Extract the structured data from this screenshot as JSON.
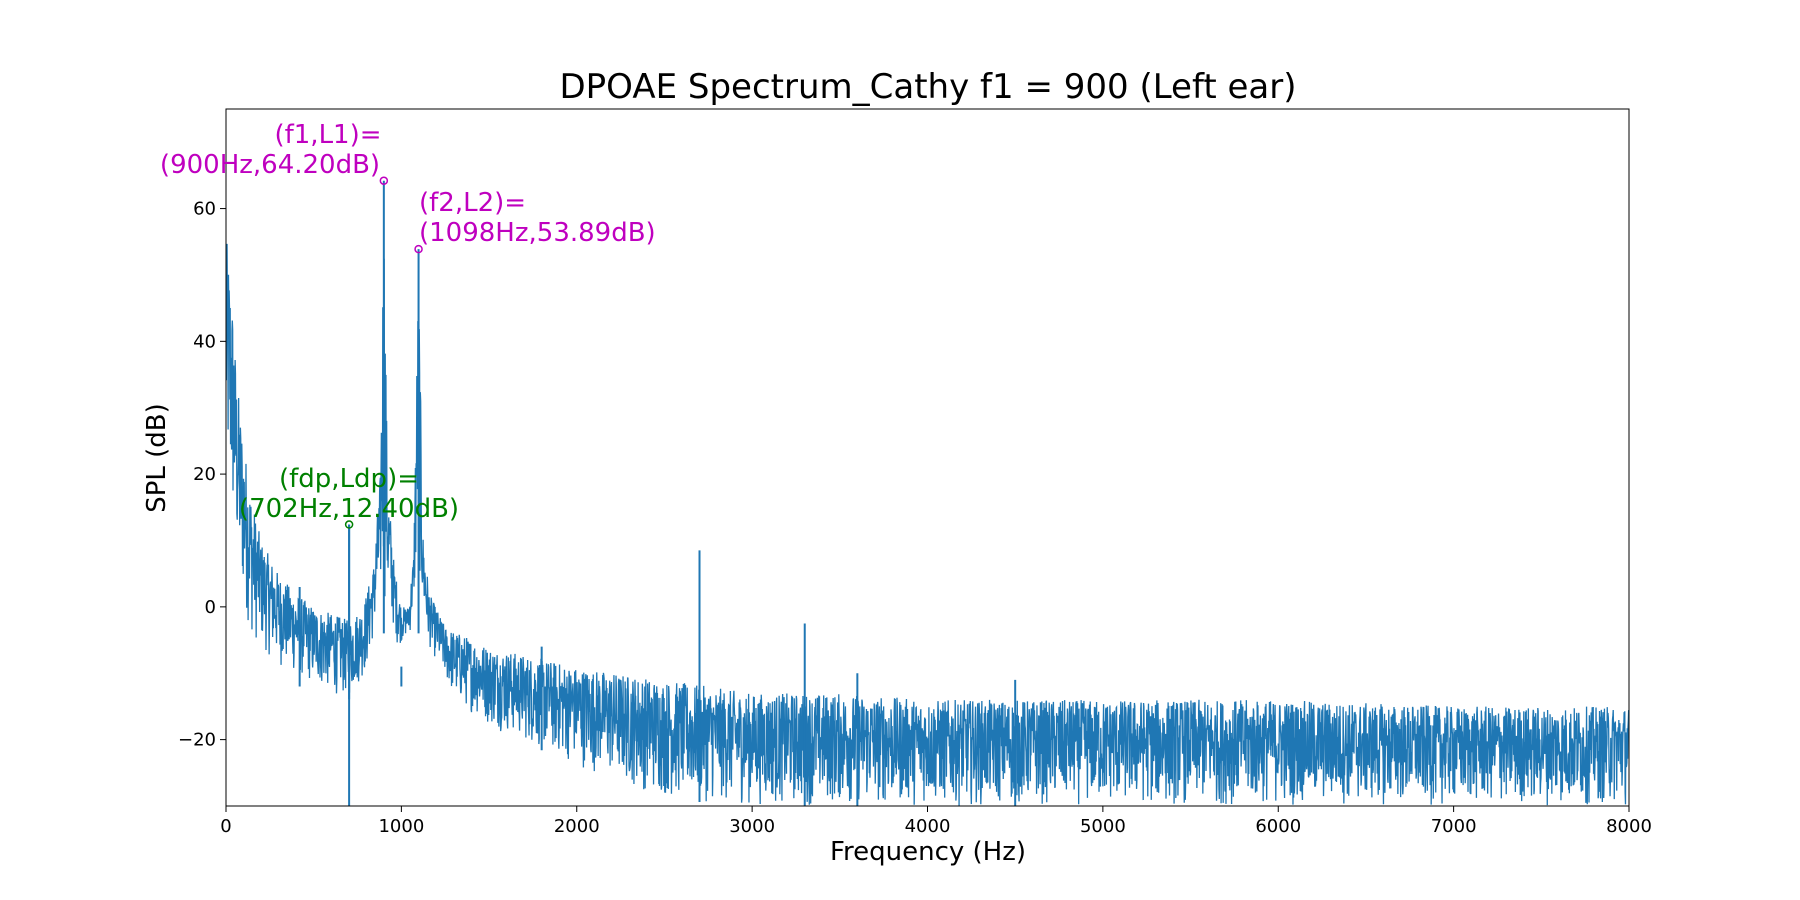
{
  "chart_data": {
    "type": "line",
    "title": "DPOAE Spectrum_Cathy f1 = 900 (Left ear)",
    "xlabel": "Frequency (Hz)",
    "ylabel": "SPL (dB)",
    "xlim": [
      0,
      8000
    ],
    "ylim": [
      -30,
      75
    ],
    "xticks": [
      0,
      1000,
      2000,
      3000,
      4000,
      5000,
      6000,
      7000,
      8000
    ],
    "yticks": [
      -20,
      0,
      20,
      40,
      60
    ],
    "ytick_labels": [
      "−20",
      "0",
      "20",
      "40",
      "60"
    ],
    "grid": false,
    "legend": "none",
    "series": [
      {
        "color": "#1f77b4",
        "description": "dense noisy spectrum; values are approximate upper/lower envelopes",
        "envelope_upper": [
          [
            0,
            56
          ],
          [
            20,
            52
          ],
          [
            40,
            45
          ],
          [
            60,
            35
          ],
          [
            100,
            25
          ],
          [
            150,
            16
          ],
          [
            200,
            10
          ],
          [
            300,
            5
          ],
          [
            400,
            2
          ],
          [
            500,
            0
          ],
          [
            600,
            -1
          ],
          [
            700,
            -2
          ],
          [
            780,
            0
          ],
          [
            840,
            6
          ],
          [
            880,
            20
          ],
          [
            900,
            64.2
          ],
          [
            920,
            20
          ],
          [
            960,
            6
          ],
          [
            1000,
            0
          ],
          [
            1040,
            0
          ],
          [
            1070,
            8
          ],
          [
            1098,
            53.89
          ],
          [
            1120,
            12
          ],
          [
            1160,
            2
          ],
          [
            1250,
            -3
          ],
          [
            1500,
            -6
          ],
          [
            2000,
            -9
          ],
          [
            2500,
            -11
          ],
          [
            3000,
            -13
          ],
          [
            3500,
            -13
          ],
          [
            4000,
            -14
          ],
          [
            5000,
            -14
          ],
          [
            6000,
            -14
          ],
          [
            7000,
            -15
          ],
          [
            8000,
            -15
          ]
        ],
        "envelope_lower": [
          [
            0,
            18
          ],
          [
            40,
            10
          ],
          [
            80,
            2
          ],
          [
            150,
            -5
          ],
          [
            300,
            -9
          ],
          [
            500,
            -12
          ],
          [
            700,
            -14
          ],
          [
            800,
            -10
          ],
          [
            880,
            0
          ],
          [
            920,
            0
          ],
          [
            980,
            -6
          ],
          [
            1050,
            -4
          ],
          [
            1098,
            5
          ],
          [
            1140,
            -5
          ],
          [
            1300,
            -14
          ],
          [
            1500,
            -18
          ],
          [
            2000,
            -24
          ],
          [
            2500,
            -29
          ],
          [
            3000,
            -30
          ],
          [
            8000,
            -30
          ]
        ],
        "spikes": [
          [
            702,
            12.4
          ],
          [
            1800,
            -6
          ],
          [
            2700,
            8.5
          ],
          [
            3300,
            -2.5
          ],
          [
            3600,
            -10
          ],
          [
            4500,
            -11
          ],
          [
            420,
            3
          ],
          [
            1000,
            -9
          ]
        ]
      }
    ],
    "annotations": [
      {
        "label": "(f1,L1)=",
        "value_text": "(900Hz,64.20dB)",
        "x": 900,
        "y": 64.2,
        "color": "#bf00bf"
      },
      {
        "label": "(f2,L2)=",
        "value_text": "(1098Hz,53.89dB)",
        "x": 1098,
        "y": 53.89,
        "color": "#bf00bf"
      },
      {
        "label": "(fdp,Ldp)=",
        "value_text": "(702Hz,12.40dB)",
        "x": 702,
        "y": 12.4,
        "color": "#008000"
      }
    ]
  }
}
